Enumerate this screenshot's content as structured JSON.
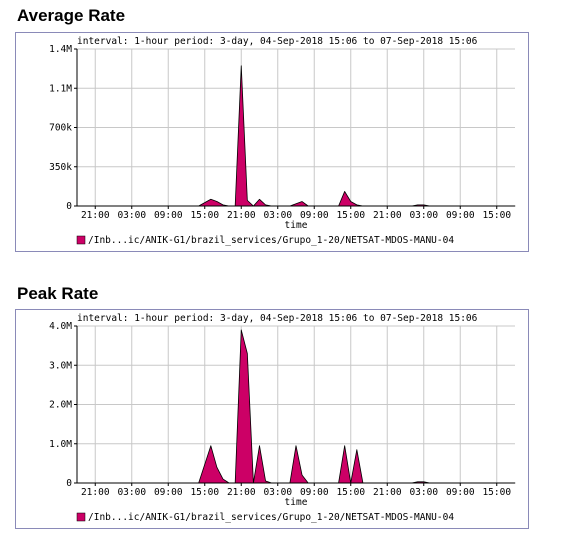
{
  "charts": [
    {
      "heading": "Average Rate",
      "info": "interval: 1-hour  period: 3-day, 04-Sep-2018 15:06 to 07-Sep-2018 15:06",
      "xlabel": "time",
      "legend": "/Inb...ic/ANIK-G1/brazil_services/Grupo_1-20/NETSAT-MDOS-MANU-04",
      "color": "#cc0066"
    },
    {
      "heading": "Peak Rate",
      "info": "interval: 1-hour  period: 3-day, 04-Sep-2018 15:06 to 07-Sep-2018 15:06",
      "xlabel": "time",
      "legend": "/Inb...ic/ANIK-G1/brazil_services/Grupo_1-20/NETSAT-MDOS-MANU-04",
      "color": "#cc0066"
    }
  ],
  "chart_data": [
    {
      "type": "area",
      "title": "Average Rate",
      "xlabel": "time",
      "ylabel": "",
      "xlim": [
        0,
        72
      ],
      "ylim": [
        0,
        1400000
      ],
      "grid": true,
      "legend_position": "bottom-left",
      "x_ticks": [
        {
          "x": 3,
          "label": "21:00"
        },
        {
          "x": 9,
          "label": "03:00"
        },
        {
          "x": 15,
          "label": "09:00"
        },
        {
          "x": 21,
          "label": "15:00"
        },
        {
          "x": 27,
          "label": "21:00"
        },
        {
          "x": 33,
          "label": "03:00"
        },
        {
          "x": 39,
          "label": "09:00"
        },
        {
          "x": 45,
          "label": "15:00"
        },
        {
          "x": 51,
          "label": "21:00"
        },
        {
          "x": 57,
          "label": "03:00"
        },
        {
          "x": 63,
          "label": "09:00"
        },
        {
          "x": 69,
          "label": "15:00"
        }
      ],
      "y_ticks": [
        {
          "value": 0,
          "label": "0"
        },
        {
          "value": 350000,
          "label": "350k"
        },
        {
          "value": 700000,
          "label": "700k"
        },
        {
          "value": 1050000,
          "label": "1.1M"
        },
        {
          "value": 1400000,
          "label": "1.4M"
        }
      ],
      "series": [
        {
          "name": "/Inb...ic/ANIK-G1/brazil_services/Grupo_1-20/NETSAT-MDOS-MANU-04",
          "x": [
            0,
            20,
            22,
            23,
            24,
            25,
            26,
            27,
            28,
            29,
            30,
            31,
            32,
            33,
            34,
            35,
            36,
            37,
            38,
            39,
            40,
            41,
            42,
            43,
            44,
            45,
            46,
            47,
            48,
            49,
            55,
            56,
            57,
            58,
            72
          ],
          "values": [
            0,
            0,
            60000,
            40000,
            10000,
            0,
            0,
            1250000,
            50000,
            0,
            60000,
            10000,
            0,
            0,
            0,
            0,
            20000,
            40000,
            0,
            0,
            0,
            0,
            0,
            0,
            130000,
            40000,
            10000,
            0,
            0,
            0,
            0,
            10000,
            10000,
            0,
            0
          ]
        }
      ]
    },
    {
      "type": "area",
      "title": "Peak Rate",
      "xlabel": "time",
      "ylabel": "",
      "xlim": [
        0,
        72
      ],
      "ylim": [
        0,
        4000000
      ],
      "grid": true,
      "legend_position": "bottom-left",
      "x_ticks": [
        {
          "x": 3,
          "label": "21:00"
        },
        {
          "x": 9,
          "label": "03:00"
        },
        {
          "x": 15,
          "label": "09:00"
        },
        {
          "x": 21,
          "label": "15:00"
        },
        {
          "x": 27,
          "label": "21:00"
        },
        {
          "x": 33,
          "label": "03:00"
        },
        {
          "x": 39,
          "label": "09:00"
        },
        {
          "x": 45,
          "label": "15:00"
        },
        {
          "x": 51,
          "label": "21:00"
        },
        {
          "x": 57,
          "label": "03:00"
        },
        {
          "x": 63,
          "label": "09:00"
        },
        {
          "x": 69,
          "label": "15:00"
        }
      ],
      "y_ticks": [
        {
          "value": 0,
          "label": "0"
        },
        {
          "value": 1000000,
          "label": "1.0M"
        },
        {
          "value": 2000000,
          "label": "2.0M"
        },
        {
          "value": 3000000,
          "label": "3.0M"
        },
        {
          "value": 4000000,
          "label": "4.0M"
        }
      ],
      "series": [
        {
          "name": "/Inb...ic/ANIK-G1/brazil_services/Grupo_1-20/NETSAT-MDOS-MANU-04",
          "x": [
            0,
            20,
            22,
            23,
            24,
            25,
            26,
            27,
            28,
            29,
            30,
            31,
            32,
            33,
            34,
            35,
            36,
            37,
            38,
            39,
            40,
            41,
            42,
            43,
            44,
            45,
            46,
            47,
            48,
            49,
            55,
            56,
            57,
            58,
            72
          ],
          "values": [
            0,
            0,
            950000,
            400000,
            100000,
            0,
            0,
            3900000,
            3300000,
            0,
            950000,
            50000,
            0,
            0,
            0,
            0,
            950000,
            200000,
            0,
            0,
            0,
            0,
            0,
            0,
            950000,
            0,
            850000,
            0,
            0,
            0,
            0,
            30000,
            30000,
            0,
            0
          ]
        }
      ]
    }
  ]
}
